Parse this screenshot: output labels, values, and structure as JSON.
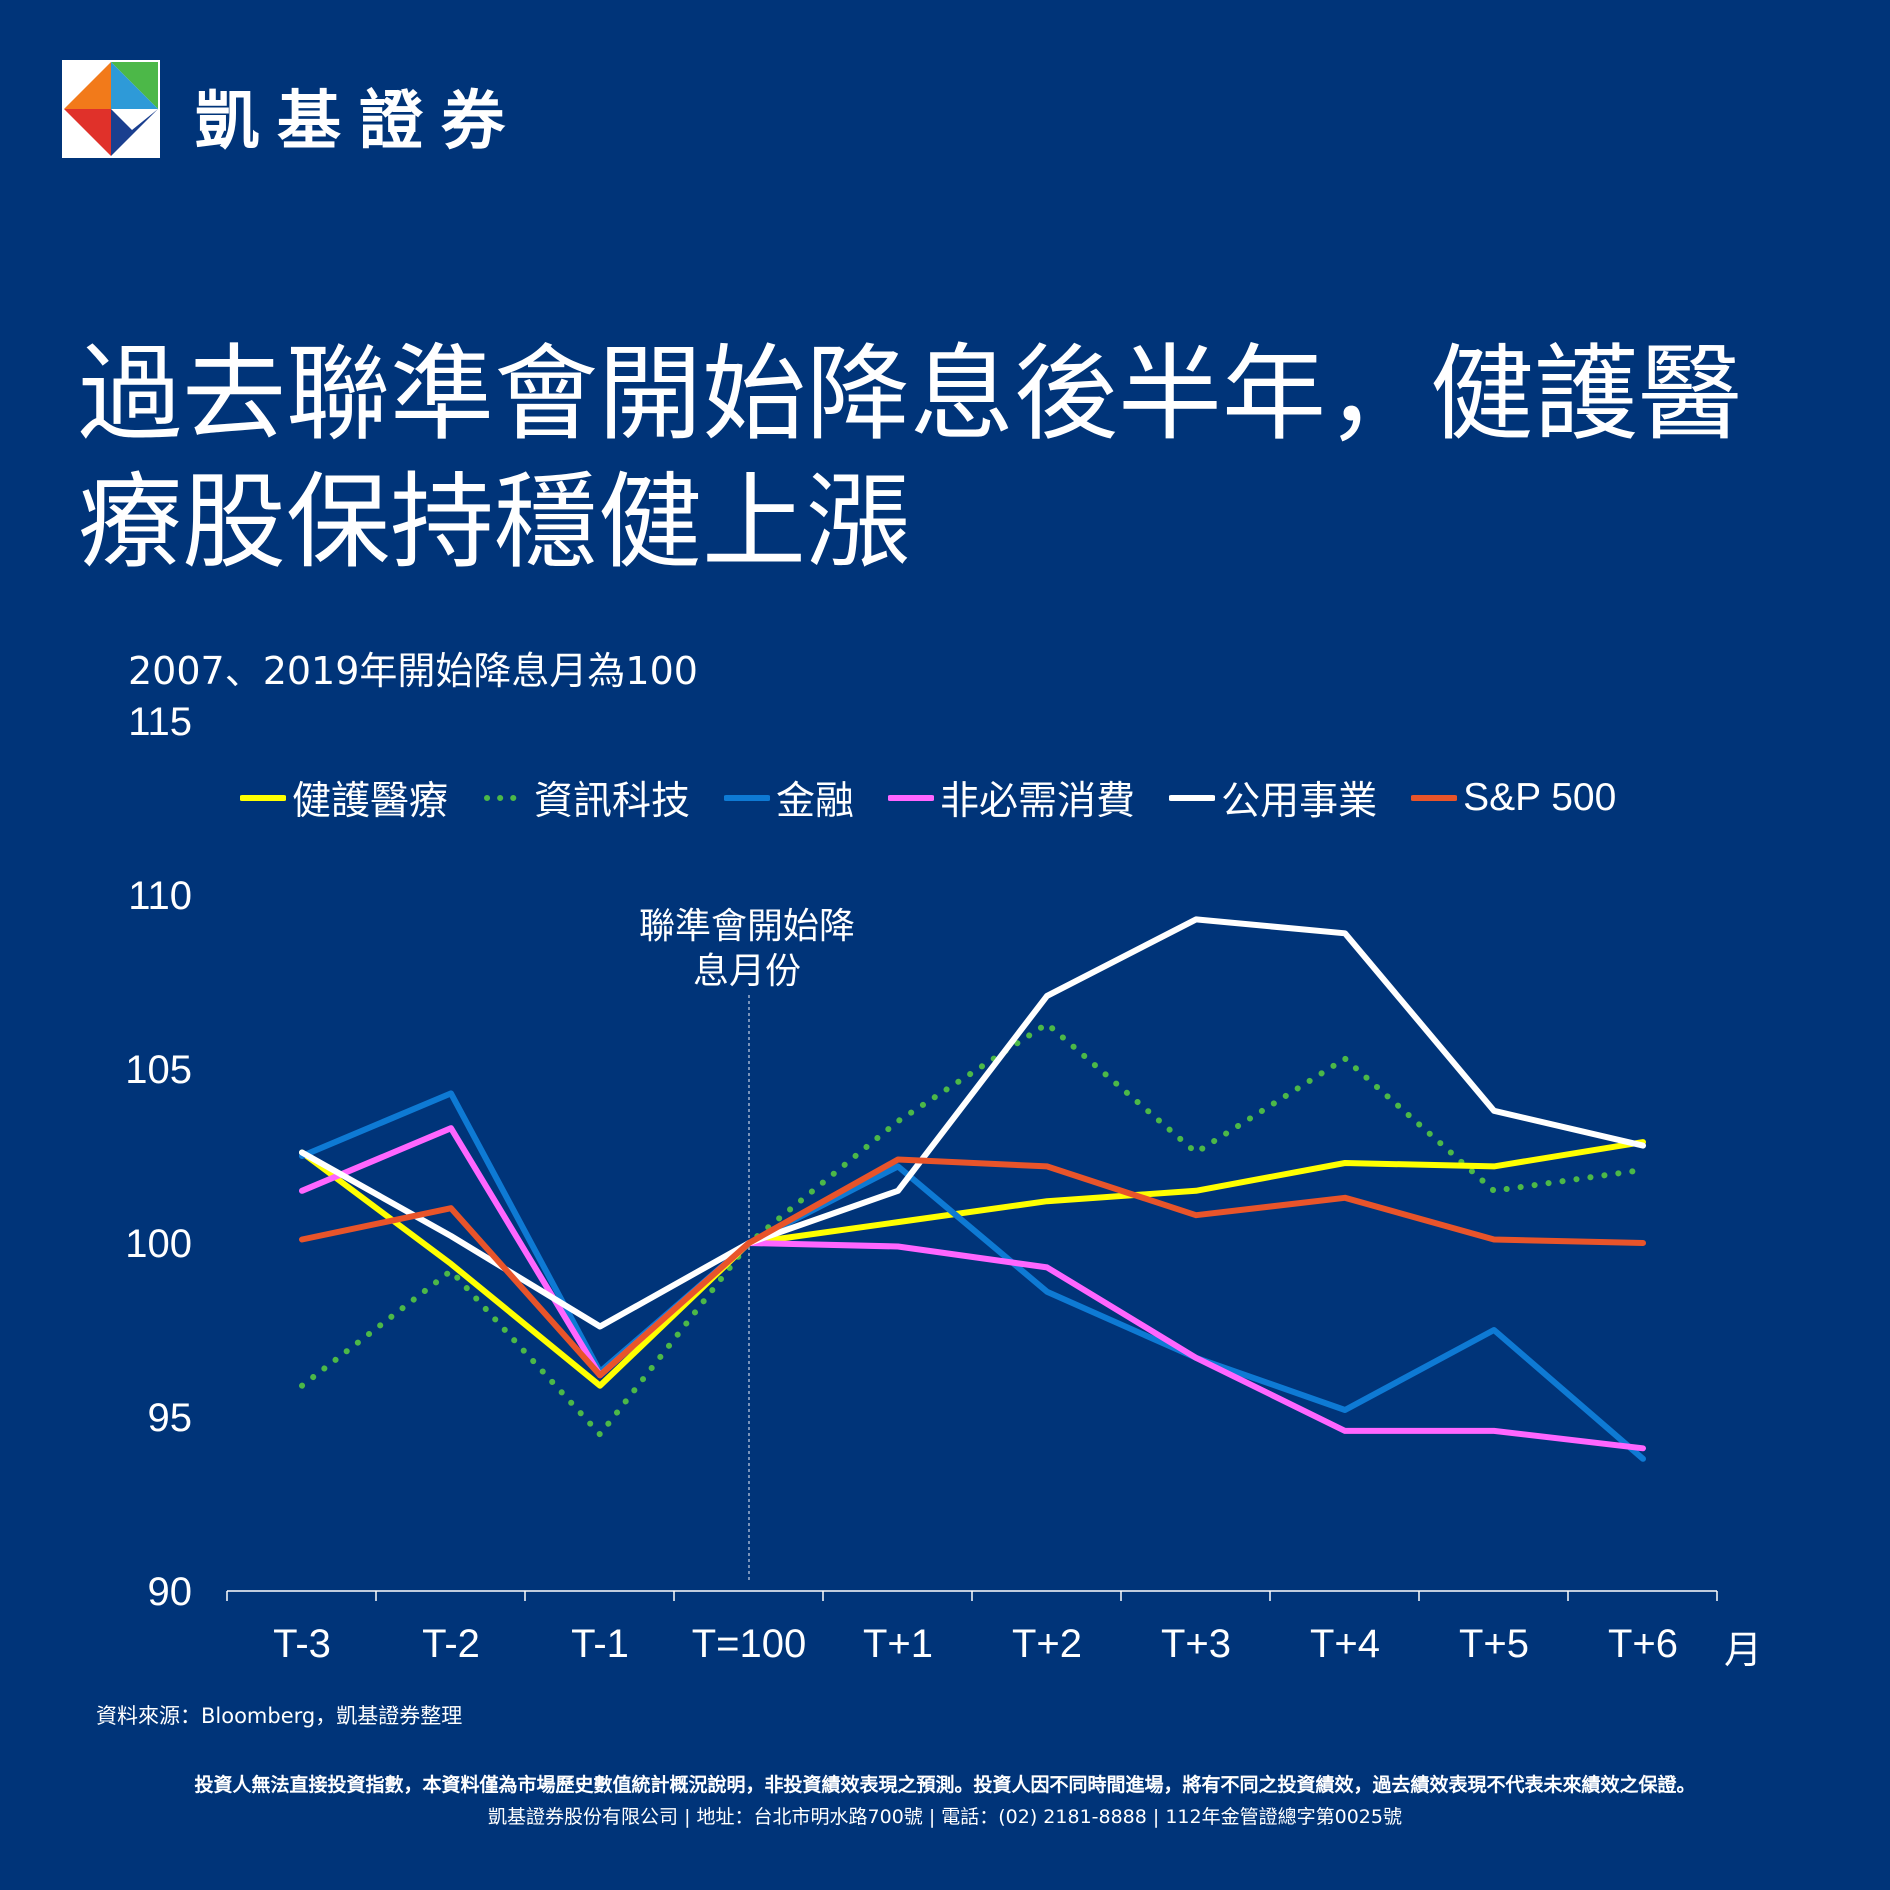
{
  "brand": {
    "name": "凱基證券"
  },
  "title": {
    "line1": "過去聯準會開始降息後半年，健護醫",
    "line2": "療股保持穩健上漲"
  },
  "chart_note": "2007、2019年開始降息月為100",
  "chart_data": {
    "type": "line",
    "categories": [
      "T-3",
      "T-2",
      "T-1",
      "T=100",
      "T+1",
      "T+2",
      "T+3",
      "T+4",
      "T+5",
      "T+6"
    ],
    "x_unit": "月",
    "y_ticks": [
      90,
      95,
      100,
      105,
      110,
      115
    ],
    "ylim": [
      90,
      115
    ],
    "annotation": {
      "text_line1": "聯準會開始降",
      "text_line2": "息月份",
      "at_category": "T=100"
    },
    "series": [
      {
        "name": "健護醫療",
        "color": "#FFFF00",
        "dashed": false,
        "values": [
          102.6,
          99.4,
          95.9,
          100.0,
          100.6,
          101.2,
          101.5,
          102.3,
          102.2,
          102.9
        ]
      },
      {
        "name": "資訊科技",
        "color": "#4CB848",
        "dashed": true,
        "values": [
          95.9,
          99.2,
          94.5,
          100.0,
          103.5,
          106.3,
          102.6,
          105.3,
          101.5,
          102.1
        ]
      },
      {
        "name": "金融",
        "color": "#0E7AD4",
        "dashed": false,
        "values": [
          102.5,
          104.3,
          96.3,
          100.0,
          102.2,
          98.6,
          96.7,
          95.2,
          97.5,
          93.8
        ]
      },
      {
        "name": "非必需消費",
        "color": "#FF66FF",
        "dashed": false,
        "values": [
          101.5,
          103.3,
          96.2,
          100.0,
          99.9,
          99.3,
          96.7,
          94.6,
          94.6,
          94.1
        ]
      },
      {
        "name": "公用事業",
        "color": "#FFFFFF",
        "dashed": false,
        "values": [
          102.6,
          100.2,
          97.6,
          100.0,
          101.5,
          107.1,
          109.3,
          108.9,
          103.8,
          102.8
        ]
      },
      {
        "name": "S&P 500",
        "color": "#E8542A",
        "dashed": false,
        "values": [
          100.1,
          101.0,
          96.2,
          100.0,
          102.4,
          102.2,
          100.8,
          101.3,
          100.1,
          100.0
        ]
      }
    ]
  },
  "source": "資料來源：Bloomberg，凱基證券整理",
  "disclaimer": "投資人無法直接投資指數，本資料僅為市場歷史數值統計概況說明，非投資績效表現之預測。投資人因不同時間進場，將有不同之投資績效，過去績效表現不代表未來績效之保證。",
  "footer": "凱基證券股份有限公司 | 地址：台北市明水路700號 | 電話：(02) 2181-8888 | 112年金管證總字第0025號"
}
